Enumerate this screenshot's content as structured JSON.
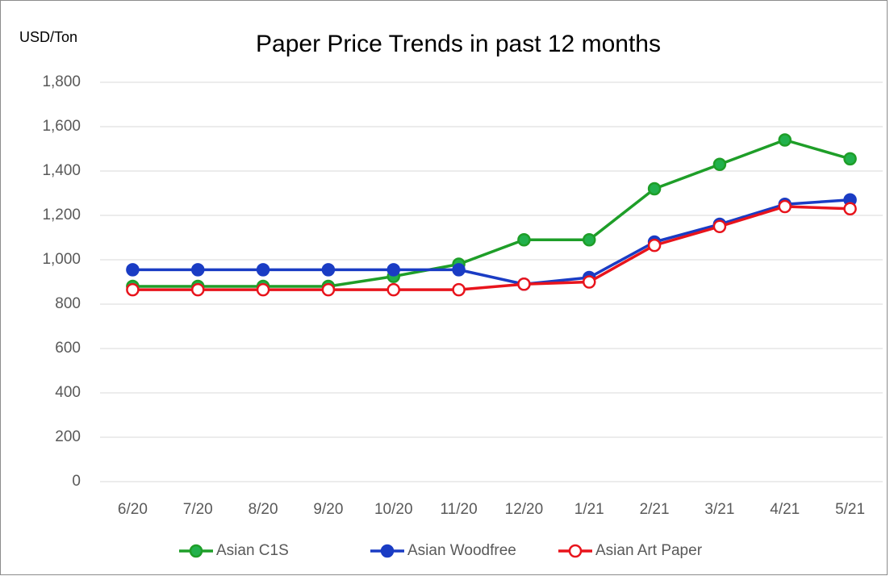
{
  "chart_data": {
    "type": "line",
    "title": "Paper Price Trends in past 12 months",
    "y_label": "USD/Ton",
    "categories": [
      "6/20",
      "7/20",
      "8/20",
      "9/20",
      "10/20",
      "11/20",
      "12/20",
      "1/21",
      "2/21",
      "3/21",
      "4/21",
      "5/21"
    ],
    "series": [
      {
        "name": "Asian C1S",
        "color": "#1e9e28",
        "marker_fill": "#22b14c",
        "values": [
          880,
          880,
          880,
          880,
          925,
          980,
          1090,
          1090,
          1320,
          1430,
          1540,
          1455
        ]
      },
      {
        "name": "Asian Woodfree",
        "color": "#1a3cc4",
        "marker_fill": "#1a3cc4",
        "values": [
          955,
          955,
          955,
          955,
          955,
          955,
          890,
          920,
          1080,
          1160,
          1250,
          1270
        ]
      },
      {
        "name": "Asian Art Paper",
        "color": "#e8141c",
        "marker_fill": "#ffffff",
        "values": [
          865,
          865,
          865,
          865,
          865,
          865,
          890,
          900,
          1065,
          1150,
          1240,
          1230
        ]
      }
    ],
    "ylim": [
      0,
      1800
    ],
    "yticks": [
      0,
      200,
      400,
      600,
      800,
      {
        "value": 1000,
        "label": "1,000"
      },
      {
        "value": 1200,
        "label": "1,200"
      },
      {
        "value": 1400,
        "label": "1,400"
      },
      {
        "value": 1600,
        "label": "1,600"
      },
      {
        "value": 1800,
        "label": "1,800"
      }
    ],
    "grid": true,
    "legend": "bottom"
  }
}
